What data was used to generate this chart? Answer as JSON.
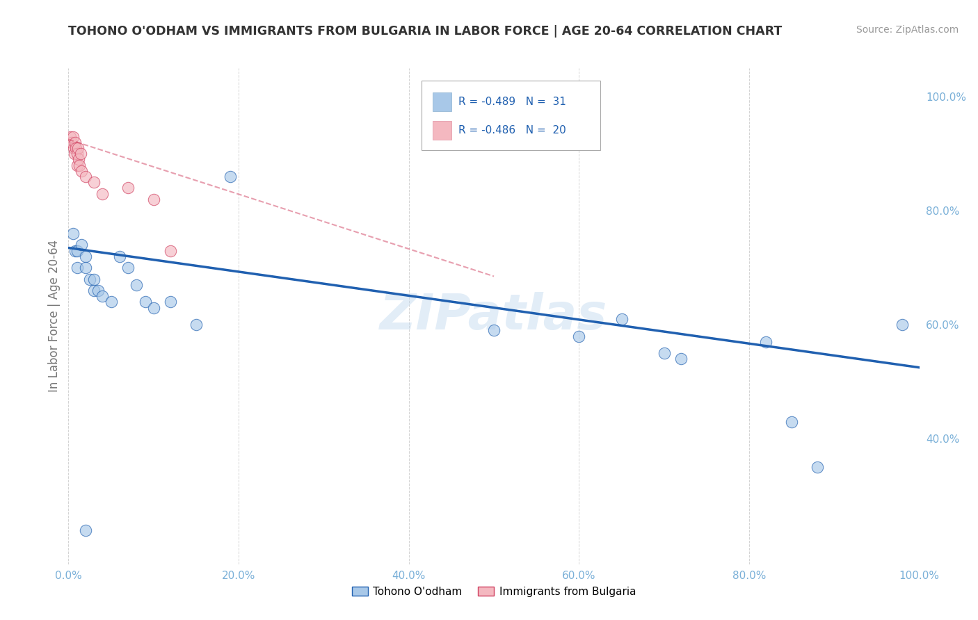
{
  "title": "TOHONO O'ODHAM VS IMMIGRANTS FROM BULGARIA IN LABOR FORCE | AGE 20-64 CORRELATION CHART",
  "source": "Source: ZipAtlas.com",
  "ylabel": "In Labor Force | Age 20-64",
  "xlim": [
    0,
    1.0
  ],
  "ylim": [
    0.18,
    1.05
  ],
  "legend_r_blue": "R = -0.489",
  "legend_n_blue": "N =  31",
  "legend_r_pink": "R = -0.486",
  "legend_n_pink": "N =  20",
  "legend_label_blue": "Tohono O'odham",
  "legend_label_pink": "Immigrants from Bulgaria",
  "blue_scatter_x": [
    0.005,
    0.008,
    0.01,
    0.01,
    0.015,
    0.02,
    0.02,
    0.025,
    0.03,
    0.03,
    0.035,
    0.04,
    0.05,
    0.06,
    0.07,
    0.08,
    0.09,
    0.1,
    0.12,
    0.15,
    0.19,
    0.5,
    0.6,
    0.65,
    0.7,
    0.72,
    0.82,
    0.85,
    0.88,
    0.98,
    0.02
  ],
  "blue_scatter_y": [
    0.76,
    0.73,
    0.73,
    0.7,
    0.74,
    0.72,
    0.7,
    0.68,
    0.68,
    0.66,
    0.66,
    0.65,
    0.64,
    0.72,
    0.7,
    0.67,
    0.64,
    0.63,
    0.64,
    0.6,
    0.86,
    0.59,
    0.58,
    0.61,
    0.55,
    0.54,
    0.57,
    0.43,
    0.35,
    0.6,
    0.24
  ],
  "pink_scatter_x": [
    0.002,
    0.004,
    0.005,
    0.006,
    0.007,
    0.008,
    0.009,
    0.01,
    0.01,
    0.011,
    0.012,
    0.013,
    0.014,
    0.015,
    0.02,
    0.03,
    0.04,
    0.07,
    0.1,
    0.12
  ],
  "pink_scatter_y": [
    0.93,
    0.92,
    0.93,
    0.91,
    0.9,
    0.92,
    0.91,
    0.9,
    0.88,
    0.91,
    0.89,
    0.88,
    0.9,
    0.87,
    0.86,
    0.85,
    0.83,
    0.84,
    0.82,
    0.73
  ],
  "blue_line_x": [
    0.0,
    1.0
  ],
  "blue_line_y": [
    0.735,
    0.525
  ],
  "pink_line_x": [
    0.0,
    0.5
  ],
  "pink_line_y": [
    0.925,
    0.685
  ],
  "blue_color": "#a8c8e8",
  "pink_color": "#f4b8c0",
  "blue_line_color": "#2060b0",
  "pink_line_color": "#d04060",
  "watermark": "ZIPatlas",
  "grid_color": "#c8c8c8",
  "title_color": "#333333",
  "tick_color": "#7ab0d8",
  "ylabel_color": "#777777"
}
